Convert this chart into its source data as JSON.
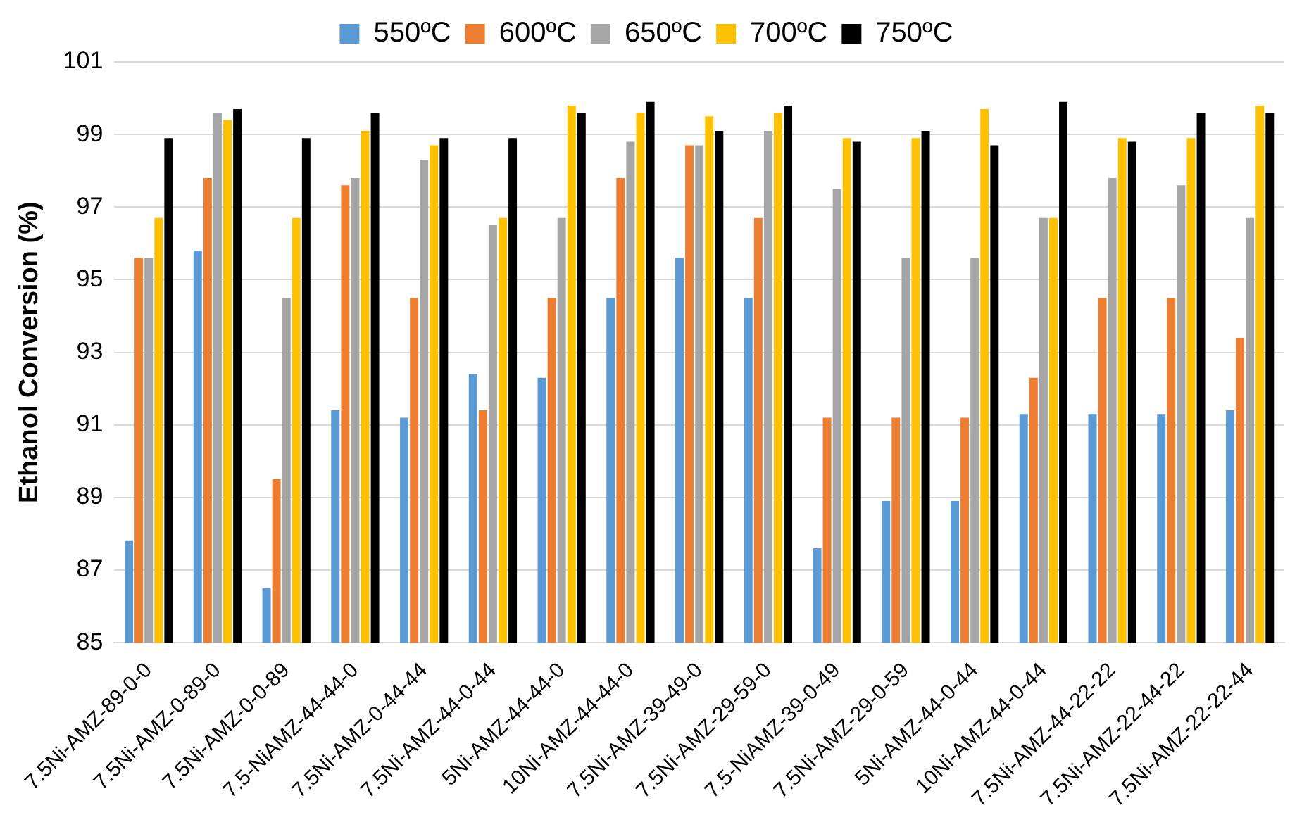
{
  "chart_data": {
    "type": "bar",
    "ylabel": "Ethanol Conversion (%)",
    "categories": [
      "7.5Ni-AMZ-89-0-0",
      "7.5Ni-AMZ-0-89-0",
      "7.5Ni-AMZ-0-0-89",
      "7.5-NiAMZ-44-44-0",
      "7.5Ni-AMZ-0-44-44",
      "7.5Ni-AMZ-44-0-44",
      "5Ni-AMZ-44-44-0",
      "10Ni-AMZ-44-44-0",
      "7.5Ni-AMZ-39-49-0",
      "7.5Ni-AMZ-29-59-0",
      "7.5-NiAMZ-39-0-49",
      "7.5Ni-AMZ-29-0-59",
      "5Ni-AMZ-44-0-44",
      "10Ni-AMZ-44-0-44",
      "7.5Ni-AMZ-44-22-22",
      "7.5Ni-AMZ-22-44-22",
      "7.5Ni-AMZ-22-22-44"
    ],
    "series": [
      {
        "name": "550ºC",
        "color": "#5b9bd5",
        "values": [
          87.8,
          95.8,
          86.5,
          91.4,
          91.2,
          92.4,
          92.3,
          94.5,
          95.6,
          94.5,
          87.6,
          88.9,
          88.9,
          91.3,
          91.3,
          91.3,
          91.4
        ]
      },
      {
        "name": "600ºC",
        "color": "#ed7d31",
        "values": [
          95.6,
          97.8,
          89.5,
          97.6,
          94.5,
          91.4,
          94.5,
          97.8,
          98.7,
          96.7,
          91.2,
          91.2,
          91.2,
          92.3,
          94.5,
          94.5,
          93.4
        ]
      },
      {
        "name": "650ºC",
        "color": "#a5a5a5",
        "values": [
          95.6,
          99.6,
          94.5,
          97.8,
          98.3,
          96.5,
          96.7,
          98.8,
          98.7,
          99.1,
          97.5,
          95.6,
          95.6,
          96.7,
          97.8,
          97.6,
          96.7
        ]
      },
      {
        "name": "700ºC",
        "color": "#ffc000",
        "values": [
          96.7,
          99.4,
          96.7,
          99.1,
          98.7,
          96.7,
          99.8,
          99.6,
          99.5,
          99.6,
          98.9,
          98.9,
          99.7,
          96.7,
          98.9,
          98.9,
          99.8
        ]
      },
      {
        "name": "750ºC",
        "color": "#000000",
        "values": [
          98.9,
          99.7,
          98.9,
          99.6,
          98.9,
          98.9,
          99.6,
          99.9,
          99.1,
          99.8,
          98.8,
          99.1,
          98.7,
          99.9,
          98.8,
          99.6,
          99.6
        ]
      }
    ],
    "ylim": [
      85,
      101
    ],
    "yticks": [
      85,
      87,
      89,
      91,
      93,
      95,
      97,
      99,
      101
    ],
    "grid": "y",
    "legend": "top"
  }
}
